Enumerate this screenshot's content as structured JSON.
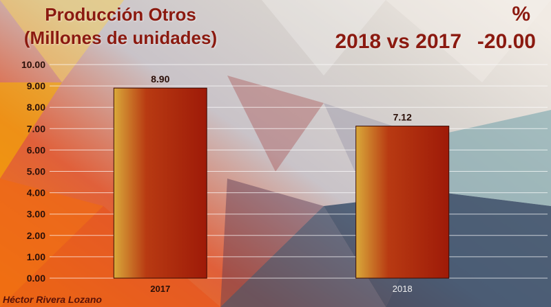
{
  "header": {
    "title_line1": "Producción Otros",
    "title_line2": "(Millones de unidades)",
    "comparison": "2018 vs 2017",
    "percent_symbol": "%",
    "percent_value": "-20.00"
  },
  "footer": {
    "author": "Héctor Rivera Lozano"
  },
  "colors": {
    "title": "#8b1a10",
    "bar_dark": "#9e1a08",
    "bar_light": "#d9a93a"
  },
  "chart_data": {
    "type": "bar",
    "categories": [
      "2017",
      "2018"
    ],
    "values": [
      8.9,
      7.12
    ],
    "value_labels": [
      "8.90",
      "7.12"
    ],
    "ylim": [
      0,
      10
    ],
    "yticks": [
      "0.00",
      "1.00",
      "2.00",
      "3.00",
      "4.00",
      "5.00",
      "6.00",
      "7.00",
      "8.00",
      "9.00",
      "10.00"
    ],
    "grid": true,
    "legend": "none"
  }
}
